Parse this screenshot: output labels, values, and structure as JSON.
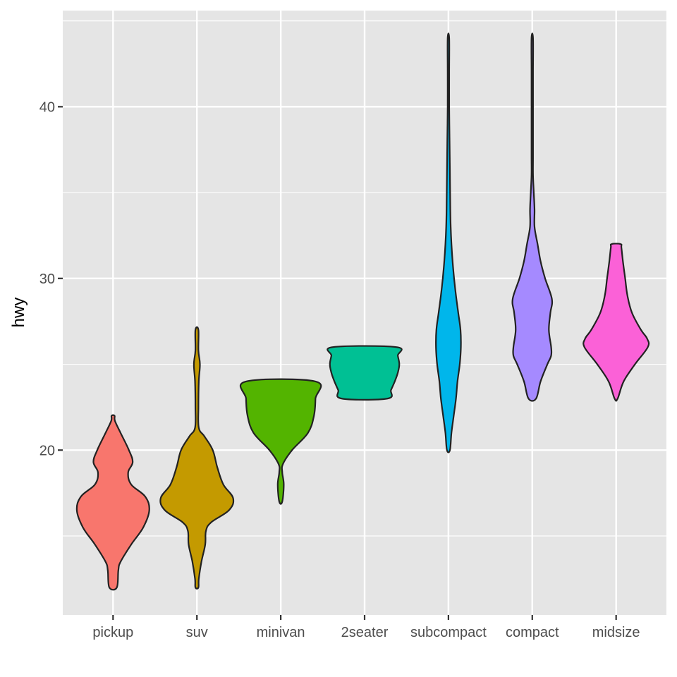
{
  "chart_data": {
    "type": "violin",
    "xlabel": "",
    "ylabel": "hwy",
    "ylim": [
      10.4,
      45.6
    ],
    "y_ticks": [
      20,
      30,
      40
    ],
    "y_minor_ticks": [
      15,
      25,
      35,
      45
    ],
    "grid": true,
    "colors": {
      "panel": "#E5E5E5",
      "grid": "#FFFFFF",
      "outline": "#222222",
      "tick_text": "#4D4D4D"
    },
    "categories": [
      "pickup",
      "suv",
      "minivan",
      "2seater",
      "subcompact",
      "compact",
      "midsize"
    ],
    "violins": [
      {
        "category": "pickup",
        "fill": "#F8766D",
        "min": 12,
        "max": 22,
        "profile": [
          [
            12,
            0.1
          ],
          [
            13,
            0.14
          ],
          [
            13.5,
            0.2
          ],
          [
            14.5,
            0.48
          ],
          [
            15.5,
            0.8
          ],
          [
            16.5,
            0.96
          ],
          [
            17.3,
            0.85
          ],
          [
            18,
            0.48
          ],
          [
            18.7,
            0.4
          ],
          [
            19.3,
            0.52
          ],
          [
            20,
            0.42
          ],
          [
            21,
            0.2
          ],
          [
            21.7,
            0.05
          ],
          [
            22,
            0.04
          ]
        ]
      },
      {
        "category": "suv",
        "fill": "#C49A00",
        "min": 12,
        "max": 27,
        "profile": [
          [
            12,
            0.04
          ],
          [
            12.5,
            0.05
          ],
          [
            13.5,
            0.12
          ],
          [
            14.5,
            0.22
          ],
          [
            15.3,
            0.24
          ],
          [
            15.8,
            0.38
          ],
          [
            16.5,
            0.85
          ],
          [
            17.2,
            0.96
          ],
          [
            18,
            0.7
          ],
          [
            19,
            0.54
          ],
          [
            20,
            0.42
          ],
          [
            20.8,
            0.2
          ],
          [
            21.3,
            0.05
          ],
          [
            22.5,
            0.04
          ],
          [
            24,
            0.05
          ],
          [
            25,
            0.08
          ],
          [
            25.8,
            0.04
          ],
          [
            27,
            0.04
          ]
        ]
      },
      {
        "category": "minivan",
        "fill": "#53B400",
        "min": 17,
        "max": 24,
        "profile": [
          [
            17,
            0.04
          ],
          [
            18,
            0.08
          ],
          [
            18.7,
            0.04
          ],
          [
            19.2,
            0.06
          ],
          [
            20,
            0.3
          ],
          [
            21,
            0.72
          ],
          [
            22,
            0.88
          ],
          [
            23,
            0.92
          ],
          [
            24,
            0.92
          ]
        ]
      },
      {
        "category": "2seater",
        "fill": "#00C094",
        "min": 23,
        "max": 26,
        "profile": [
          [
            23,
            0.6
          ],
          [
            23.5,
            0.7
          ],
          [
            24,
            0.8
          ],
          [
            24.5,
            0.88
          ],
          [
            25,
            0.92
          ],
          [
            25.5,
            0.88
          ],
          [
            26,
            0.84
          ]
        ]
      },
      {
        "category": "subcompact",
        "fill": "#00B6EB",
        "min": 20,
        "max": 44,
        "profile": [
          [
            20,
            0.04
          ],
          [
            21,
            0.08
          ],
          [
            22,
            0.14
          ],
          [
            23,
            0.2
          ],
          [
            24,
            0.24
          ],
          [
            25,
            0.3
          ],
          [
            26,
            0.33
          ],
          [
            27,
            0.32
          ],
          [
            28,
            0.26
          ],
          [
            29,
            0.2
          ],
          [
            30,
            0.15
          ],
          [
            31,
            0.11
          ],
          [
            32,
            0.08
          ],
          [
            33,
            0.06
          ],
          [
            34,
            0.05
          ],
          [
            36,
            0.04
          ],
          [
            38,
            0.03
          ],
          [
            40,
            0.02
          ],
          [
            42,
            0.02
          ],
          [
            44,
            0.02
          ]
        ]
      },
      {
        "category": "compact",
        "fill": "#A58AFF",
        "min": 23,
        "max": 44,
        "profile": [
          [
            23,
            0.1
          ],
          [
            24,
            0.22
          ],
          [
            25,
            0.4
          ],
          [
            25.5,
            0.5
          ],
          [
            26,
            0.5
          ],
          [
            27,
            0.44
          ],
          [
            28,
            0.48
          ],
          [
            28.8,
            0.52
          ],
          [
            30,
            0.34
          ],
          [
            31,
            0.22
          ],
          [
            32,
            0.14
          ],
          [
            33,
            0.06
          ],
          [
            34,
            0.06
          ],
          [
            35,
            0.04
          ],
          [
            36,
            0.02
          ],
          [
            37,
            0.02
          ],
          [
            38,
            0.02
          ],
          [
            40,
            0.02
          ],
          [
            42,
            0.02
          ],
          [
            44,
            0.02
          ]
        ]
      },
      {
        "category": "midsize",
        "fill": "#FB61D7",
        "min": 23,
        "max": 32,
        "profile": [
          [
            23,
            0.04
          ],
          [
            24,
            0.2
          ],
          [
            25,
            0.5
          ],
          [
            26,
            0.84
          ],
          [
            26.5,
            0.82
          ],
          [
            27,
            0.66
          ],
          [
            28,
            0.42
          ],
          [
            29,
            0.3
          ],
          [
            30,
            0.24
          ],
          [
            31,
            0.18
          ],
          [
            31.8,
            0.14
          ],
          [
            32,
            0.12
          ]
        ]
      }
    ]
  }
}
